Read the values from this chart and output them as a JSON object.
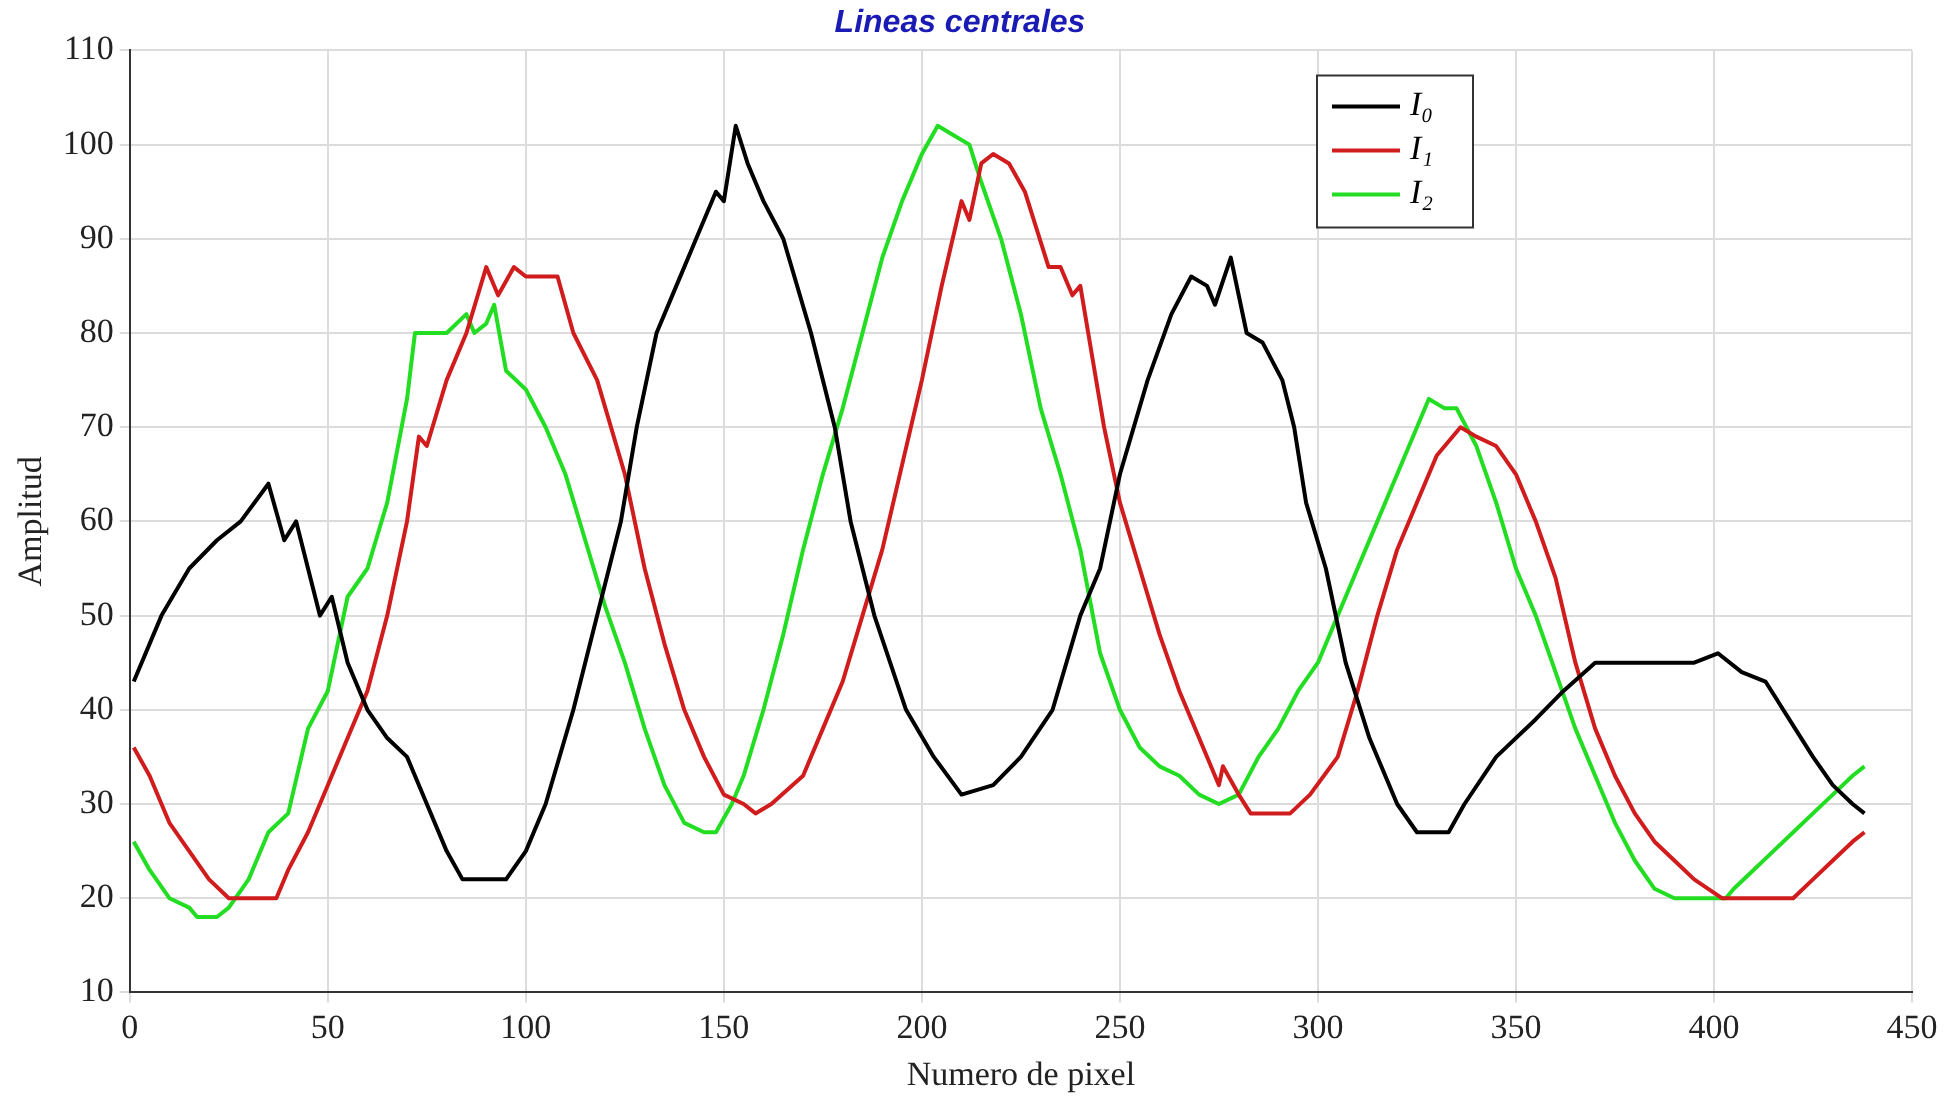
{
  "chart_data": {
    "type": "line",
    "title": "Lineas centrales",
    "xlabel": "Numero de pixel",
    "ylabel": "Amplitud",
    "xlim": [
      0,
      450
    ],
    "xticks": [
      0,
      50,
      100,
      150,
      200,
      250,
      300,
      350,
      400,
      450
    ],
    "ylim": [
      10,
      110
    ],
    "yticks": [
      10,
      20,
      30,
      40,
      50,
      60,
      70,
      80,
      90,
      100,
      110
    ],
    "grid": true,
    "legend": "top right",
    "marker": "none",
    "line_style": "solid",
    "series": [
      {
        "name": "I₀",
        "color": "#000000",
        "x": [
          1,
          8,
          15,
          22,
          28,
          35,
          39,
          42,
          45,
          48,
          51,
          55,
          60,
          65,
          70,
          75,
          80,
          84,
          95,
          100,
          105,
          112,
          118,
          124,
          128,
          133,
          138,
          143,
          148,
          150,
          153,
          156,
          160,
          165,
          172,
          178,
          182,
          188,
          196,
          203,
          210,
          218,
          225,
          233,
          240,
          245,
          250,
          257,
          263,
          268,
          272,
          274,
          278,
          282,
          286,
          291,
          294,
          297,
          302,
          307,
          313,
          320,
          325,
          333,
          337,
          345,
          355,
          362,
          370,
          395,
          401,
          407,
          413,
          425,
          430,
          435,
          438
        ],
        "values": [
          43,
          50,
          55,
          58,
          60,
          64,
          58,
          60,
          55,
          50,
          52,
          45,
          40,
          37,
          35,
          30,
          25,
          22,
          22,
          25,
          30,
          40,
          50,
          60,
          70,
          80,
          85,
          90,
          95,
          94,
          102,
          98,
          94,
          90,
          80,
          70,
          60,
          50,
          40,
          35,
          31,
          32,
          35,
          40,
          50,
          55,
          65,
          75,
          82,
          86,
          85,
          83,
          88,
          80,
          79,
          75,
          70,
          62,
          55,
          45,
          37,
          30,
          27,
          27,
          30,
          35,
          39,
          42,
          45,
          45,
          46,
          44,
          43,
          35,
          32,
          30,
          29
        ]
      },
      {
        "name": "I₁",
        "color": "#d01c1c",
        "x": [
          1,
          5,
          10,
          15,
          20,
          25,
          37,
          40,
          45,
          50,
          55,
          60,
          65,
          70,
          73,
          75,
          80,
          85,
          90,
          93,
          97,
          100,
          108,
          112,
          118,
          125,
          130,
          135,
          140,
          145,
          150,
          155,
          158,
          162,
          170,
          175,
          180,
          185,
          190,
          195,
          200,
          205,
          210,
          212,
          215,
          218,
          222,
          226,
          232,
          235,
          238,
          240,
          242,
          246,
          250,
          255,
          260,
          265,
          270,
          275,
          276,
          280,
          283,
          293,
          298,
          305,
          310,
          315,
          320,
          325,
          330,
          336,
          340,
          345,
          350,
          355,
          360,
          365,
          370,
          375,
          380,
          385,
          390,
          395,
          402,
          420,
          425,
          430,
          435,
          438
        ],
        "values": [
          36,
          33,
          28,
          25,
          22,
          20,
          20,
          23,
          27,
          32,
          37,
          42,
          50,
          60,
          69,
          68,
          75,
          80,
          87,
          84,
          87,
          86,
          86,
          80,
          75,
          65,
          55,
          47,
          40,
          35,
          31,
          30,
          29,
          30,
          33,
          38,
          43,
          50,
          57,
          66,
          75,
          85,
          94,
          92,
          98,
          99,
          98,
          95,
          87,
          87,
          84,
          85,
          80,
          70,
          62,
          55,
          48,
          42,
          37,
          32,
          34,
          31,
          29,
          29,
          31,
          35,
          42,
          50,
          57,
          62,
          67,
          70,
          69,
          68,
          65,
          60,
          54,
          45,
          38,
          33,
          29,
          26,
          24,
          22,
          20,
          20,
          22,
          24,
          26,
          27
        ]
      },
      {
        "name": "I₂",
        "color": "#22dd22",
        "x": [
          1,
          5,
          10,
          15,
          17,
          22,
          25,
          30,
          35,
          40,
          45,
          50,
          55,
          60,
          65,
          70,
          72,
          80,
          85,
          87,
          90,
          92,
          95,
          100,
          105,
          110,
          115,
          120,
          125,
          130,
          135,
          140,
          145,
          148,
          152,
          155,
          160,
          165,
          170,
          175,
          180,
          185,
          190,
          195,
          200,
          204,
          208,
          212,
          215,
          220,
          225,
          230,
          235,
          240,
          245,
          250,
          255,
          260,
          265,
          270,
          275,
          280,
          285,
          290,
          295,
          300,
          305,
          310,
          315,
          320,
          325,
          328,
          332,
          335,
          340,
          345,
          350,
          355,
          360,
          365,
          370,
          375,
          380,
          385,
          390,
          403,
          405,
          410,
          415,
          420,
          425,
          430,
          435,
          438
        ],
        "values": [
          26,
          23,
          20,
          19,
          18,
          18,
          19,
          22,
          27,
          29,
          38,
          42,
          52,
          55,
          62,
          73,
          80,
          80,
          82,
          80,
          81,
          83,
          76,
          74,
          70,
          65,
          58,
          51,
          45,
          38,
          32,
          28,
          27,
          27,
          30,
          33,
          40,
          48,
          57,
          65,
          72,
          80,
          88,
          94,
          99,
          102,
          101,
          100,
          96,
          90,
          82,
          72,
          65,
          57,
          46,
          40,
          36,
          34,
          33,
          31,
          30,
          31,
          35,
          38,
          42,
          45,
          50,
          55,
          60,
          65,
          70,
          73,
          72,
          72,
          68,
          62,
          55,
          50,
          44,
          38,
          33,
          28,
          24,
          21,
          20,
          20,
          21,
          23,
          25,
          27,
          29,
          31,
          33,
          34
        ]
      }
    ]
  }
}
